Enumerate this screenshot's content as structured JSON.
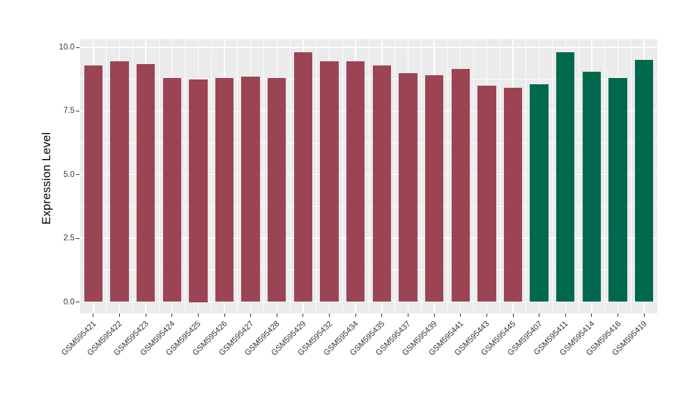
{
  "figure": {
    "background": "#FFFFFF",
    "panel_background": "#EBEBEB",
    "grid_color": "#FFFFFF",
    "axis_text_color": "#333333",
    "axis_title_color": "#000000"
  },
  "chart_data": {
    "type": "bar",
    "title": "",
    "xlabel": "",
    "ylabel": "Expression Level",
    "categories": [
      "GSM595421",
      "GSM595422",
      "GSM595423",
      "GSM595424",
      "GSM595425",
      "GSM595426",
      "GSM595427",
      "GSM595428",
      "GSM595429",
      "GSM595432",
      "GSM595434",
      "GSM595435",
      "GSM595437",
      "GSM595439",
      "GSM595441",
      "GSM595443",
      "GSM595445",
      "GSM595407",
      "GSM595411",
      "GSM595414",
      "GSM595416",
      "GSM595419"
    ],
    "values": [
      9.3,
      9.45,
      9.35,
      8.8,
      8.75,
      8.8,
      8.85,
      8.8,
      9.8,
      9.45,
      9.45,
      9.3,
      9.0,
      8.9,
      9.15,
      8.5,
      8.4,
      8.55,
      9.8,
      9.05,
      8.8,
      9.5
    ],
    "groups": [
      "maroon",
      "maroon",
      "maroon",
      "maroon",
      "maroon",
      "maroon",
      "maroon",
      "maroon",
      "maroon",
      "maroon",
      "maroon",
      "maroon",
      "maroon",
      "maroon",
      "maroon",
      "maroon",
      "maroon",
      "green",
      "green",
      "green",
      "green",
      "green"
    ],
    "group_colors": {
      "maroon": "#9B4453",
      "green": "#00694D"
    },
    "yticks": [
      0,
      2.5,
      5,
      7.5,
      10
    ],
    "ytick_labels": [
      "0.0",
      "2.5",
      "5.0",
      "7.5",
      "10.0"
    ],
    "yticks_minor": [
      1.25,
      3.75,
      6.25,
      8.75
    ],
    "ylim": [
      -0.47,
      10.33
    ],
    "grid": true,
    "legend": "none",
    "bar_width_ratio": 0.7
  }
}
